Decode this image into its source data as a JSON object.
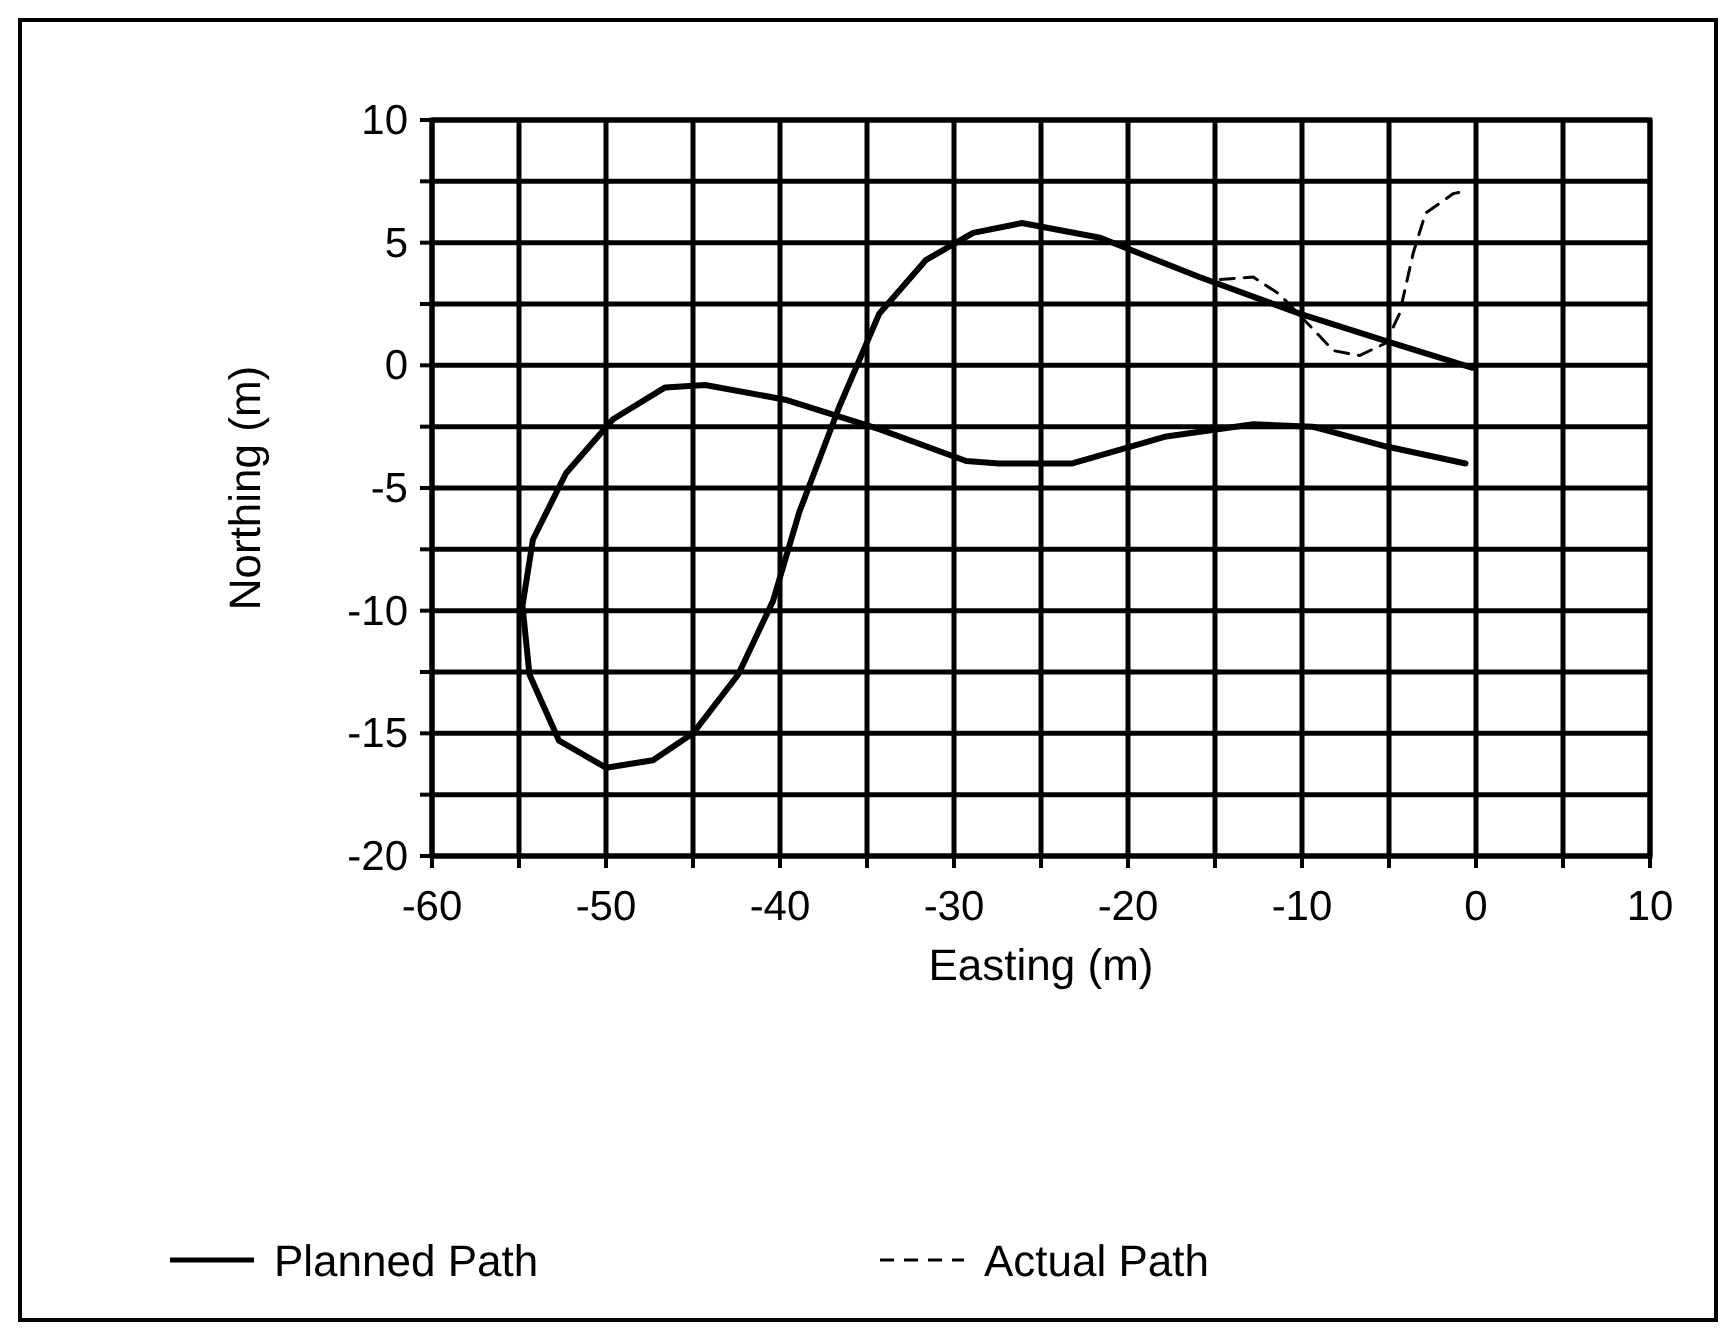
{
  "chart_data": {
    "type": "line",
    "xlabel": "Easting (m)",
    "ylabel": "Northing (m)",
    "xlim": [
      -60,
      10
    ],
    "ylim": [
      -20,
      10
    ],
    "xticks": [
      -60,
      {
        "value": -55,
        "label": null
      },
      -50,
      {
        "value": -45,
        "label": null
      },
      -40,
      {
        "value": -35,
        "label": null
      },
      -30,
      {
        "value": -25,
        "label": null
      },
      -20,
      {
        "value": -15,
        "label": null
      },
      -10,
      {
        "value": -5,
        "label": null
      },
      0,
      {
        "value": 5,
        "label": null
      },
      10
    ],
    "yticks": [
      -20,
      {
        "value": -17.5,
        "label": null
      },
      -15,
      {
        "value": -12.5,
        "label": null
      },
      -10,
      {
        "value": -7.5,
        "label": null
      },
      -5,
      {
        "value": -2.5,
        "label": null
      },
      0,
      {
        "value": 2.5,
        "label": null
      },
      5,
      {
        "value": 7.5,
        "label": null
      },
      10
    ],
    "grid": true,
    "legend": "bottom",
    "marker": "none",
    "series": [
      {
        "name": "Planned Path",
        "color": "#000000",
        "line_style": "solid",
        "x": [
          -0.6,
          -5.2,
          -9.4,
          -12.8,
          -17.8,
          -23.2,
          -27.4,
          -29.3,
          -34.3,
          -37,
          -39.7,
          -44.3,
          -46.6,
          -49.6,
          -52.3,
          -54.2,
          -54.8,
          -54.4,
          -52.7,
          -50,
          -47.3,
          -45,
          -42.4,
          -40.4,
          -38.9,
          -36.6,
          -34.3,
          -31.6,
          -28.9,
          -26.1,
          -21.6,
          -15.9,
          -10.1,
          -5.2,
          -0.2
        ],
        "values": [
          -4.0,
          -3.3,
          -2.5,
          -2.4,
          -2.9,
          -4.0,
          -4.0,
          -3.9,
          -2.6,
          -2.0,
          -1.4,
          -0.8,
          -0.9,
          -2.2,
          -4.4,
          -7.1,
          -9.8,
          -12.6,
          -15.3,
          -16.4,
          -16.1,
          -15,
          -12.6,
          -9.6,
          -6.0,
          -1.7,
          2.1,
          4.3,
          5.4,
          5.8,
          5.2,
          3.6,
          2.1,
          1.0,
          -0.1
        ]
      },
      {
        "name": "Actual Path",
        "color": "#000000",
        "line_style": "dashed",
        "x": [
          -14.7,
          -12.8,
          -11.3,
          -9.8,
          -8.2,
          -6.7,
          -5.2,
          -4.4,
          -3.6,
          -2.9,
          -1.3,
          -0.6
        ],
        "values": [
          3.5,
          3.6,
          2.9,
          1.8,
          0.6,
          0.4,
          0.9,
          2.1,
          4.6,
          6.2,
          7.0,
          7.1
        ]
      }
    ]
  }
}
